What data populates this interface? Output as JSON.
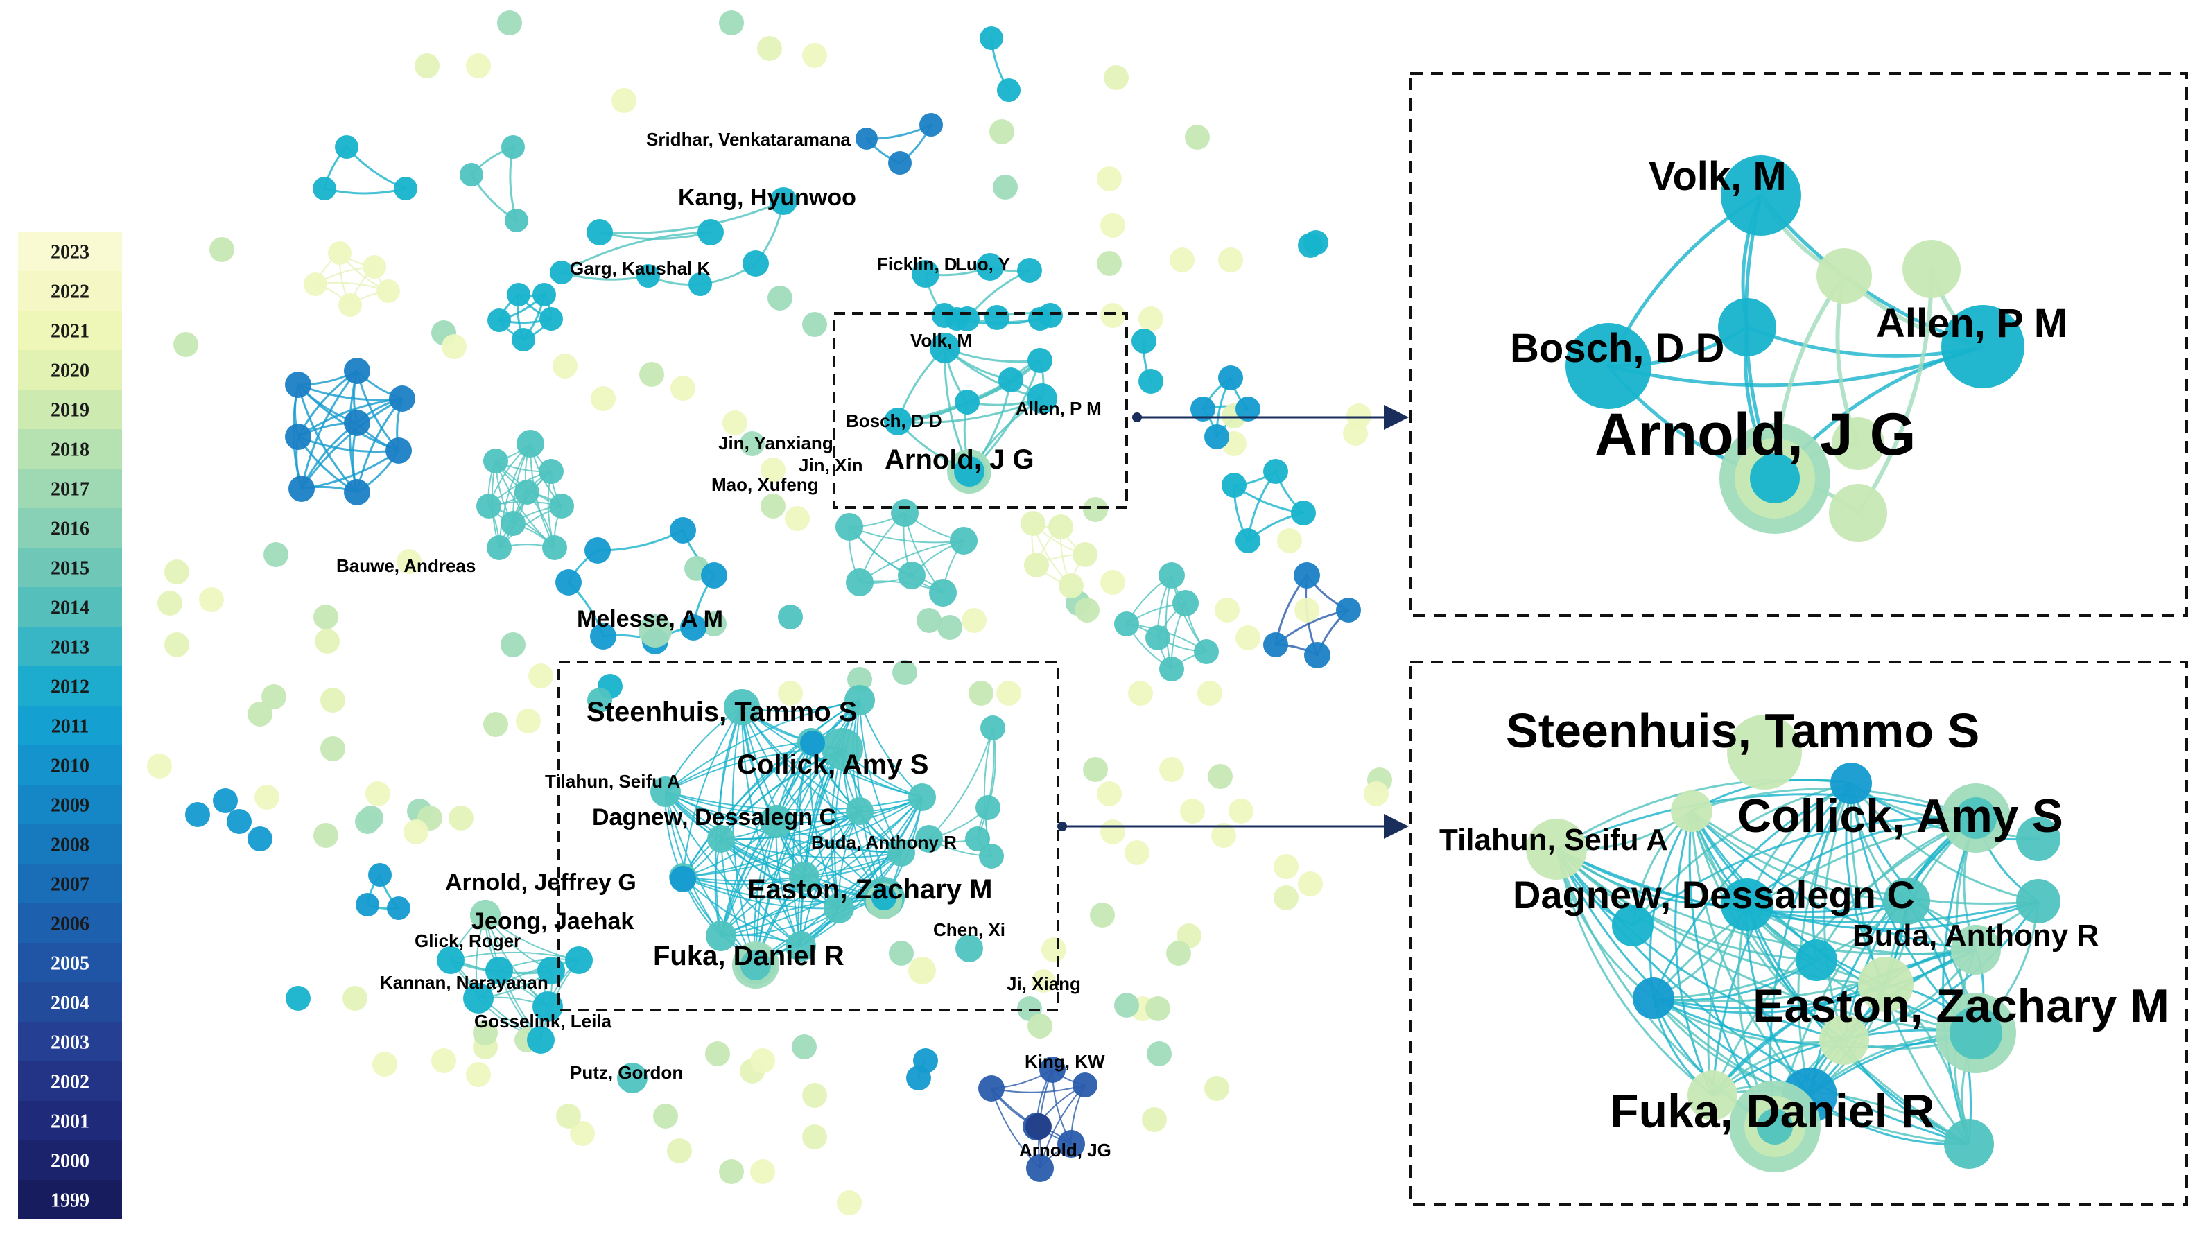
{
  "legend": {
    "years": [
      "2023",
      "2022",
      "2021",
      "2020",
      "2019",
      "2018",
      "2017",
      "2016",
      "2015",
      "2014",
      "2013",
      "2012",
      "2011",
      "2010",
      "2009",
      "2008",
      "2007",
      "2006",
      "2005",
      "2004",
      "2003",
      "2002",
      "2001",
      "2000",
      "1999"
    ],
    "colors": [
      "#fafad2",
      "#f5f8c4",
      "#eef6b8",
      "#e2f2b2",
      "#cdeab0",
      "#b6e2b2",
      "#9fd9b4",
      "#88d0b6",
      "#6fc7b8",
      "#55bfbb",
      "#38b6c6",
      "#1eacce",
      "#14a0d1",
      "#1493cc",
      "#1586c6",
      "#177abf",
      "#1a6db7",
      "#1d60ae",
      "#2055a5",
      "#234b9c",
      "#253f92",
      "#233486",
      "#1f2b7a",
      "#1b236d",
      "#161c5d"
    ]
  },
  "labels": {
    "sridhar": "Sridhar, Venkataramana",
    "kang": "Kang, Hyunwoo",
    "garg": "Garg, Kaushal K",
    "ficklin": "Ficklin, D",
    "luo": "Luo, Y",
    "volk_main": "Volk, M",
    "bosch_main": "Bosch, D D",
    "allen_main": "Allen, P M",
    "jin_yanxiang": "Jin, Yanxiang",
    "jin_xin": "Jin, Xin",
    "mao": "Mao, Xufeng",
    "arnold_jg_main": "Arnold, J G",
    "bauwe": "Bauwe, Andreas",
    "melesse": "Melesse, A M",
    "steenhuis_main": "Steenhuis, Tammo S",
    "collick_main": "Collick, Amy S",
    "tilahun_main": "Tilahun, Seifu A",
    "dagnew_main": "Dagnew, Dessalegn C",
    "buda_main": "Buda, Anthony R",
    "arnold_jeffrey": "Arnold, Jeffrey G",
    "easton_main": "Easton, Zachary M",
    "jeong": "Jeong, Jaehak",
    "glick": "Glick, Roger",
    "chen": "Chen, Xi",
    "fuka_main": "Fuka, Daniel R",
    "kannan": "Kannan, Narayanan",
    "ji": "Ji, Xiang",
    "gosselink": "Gosselink, Leila",
    "putz": "Putz, Gordon",
    "king": "King, KW",
    "arnold_jg_small": "Arnold, JG",
    "volk_zoom": "Volk, M",
    "bosch_zoom": "Bosch, D D",
    "allen_zoom": "Allen, P M",
    "arnold_zoom": "Arnold, J G",
    "steenhuis_zoom": "Steenhuis, Tammo S",
    "collick_zoom": "Collick, Amy S",
    "tilahun_zoom": "Tilahun, Seifu A",
    "dagnew_zoom": "Dagnew, Dessalegn C",
    "buda_zoom": "Buda, Anthony R",
    "easton_zoom": "Easton, Zachary M",
    "fuka_zoom": "Fuka, Daniel R"
  }
}
